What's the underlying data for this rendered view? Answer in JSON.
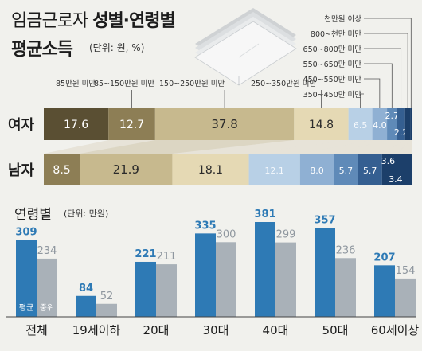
{
  "title": {
    "line1_light": "임금근로자",
    "line1_bold": "성별·연령별",
    "line2": "평균소득",
    "unit": "(단위: 원, %)"
  },
  "age_section": {
    "title": "연령별",
    "unit": "(단위: 만원)"
  },
  "colors": {
    "gender_segments": [
      "#5a4f33",
      "#8d7e55",
      "#c7b98e",
      "#e5d9b4",
      "#b8d0e6",
      "#8fb0d3",
      "#5f8ab8",
      "#355f91",
      "#1c3f6a"
    ],
    "avg_bar": "#2e7ab5",
    "median_bar": "#a9b1b8",
    "avg_label": "#2e7ab5",
    "median_label": "#8f979f",
    "connector": "#cbc0a0"
  },
  "chart_data": [
    {
      "type": "bar",
      "orientation": "horizontal",
      "stacked": true,
      "percent": true,
      "categories": [
        "여자",
        "남자"
      ],
      "top_brackets": [
        "85만원 미만",
        "85~150만원 미만",
        "150~250만원 미만",
        "250~350만원 미만"
      ],
      "side_brackets": [
        "천만원 이상",
        "800~천만 미만",
        "650~800만 미만",
        "550~650만 미만",
        "450~550만 미만",
        "350~450만 미만"
      ],
      "series": [
        {
          "values": [
            17.6,
            0
          ],
          "labels": [
            "17.6",
            ""
          ]
        },
        {
          "values": [
            12.7,
            8.5
          ],
          "labels": [
            "12.7",
            "8.5"
          ]
        },
        {
          "values": [
            37.8,
            21.9
          ],
          "labels": [
            "37.8",
            "21.9"
          ]
        },
        {
          "values": [
            14.8,
            18.1
          ],
          "labels": [
            "14.8",
            "18.1"
          ]
        },
        {
          "values": [
            6.5,
            12.1
          ],
          "labels": [
            "6.5",
            "12.1"
          ]
        },
        {
          "values": [
            4.0,
            8.0
          ],
          "labels": [
            "4.0",
            "8.0"
          ]
        },
        {
          "values": [
            2.7,
            5.7
          ],
          "labels": [
            "2.7",
            "5.7"
          ]
        },
        {
          "values": [
            2.2,
            5.7
          ],
          "labels": [
            "2.2",
            "5.7"
          ]
        },
        {
          "values": [
            1.5,
            3.6
          ],
          "labels": [
            "",
            "3.6"
          ]
        },
        {
          "values": [
            0.3,
            3.4
          ],
          "labels": [
            "",
            "3.4"
          ]
        }
      ]
    },
    {
      "type": "bar",
      "orientation": "vertical",
      "categories": [
        "전체",
        "19세이하",
        "20대",
        "30대",
        "40대",
        "50대",
        "60세이상"
      ],
      "series": [
        {
          "name": "평균",
          "values": [
            309,
            84,
            221,
            335,
            381,
            357,
            207
          ]
        },
        {
          "name": "중위",
          "values": [
            234,
            52,
            211,
            300,
            299,
            236,
            154
          ]
        }
      ],
      "ylim": [
        0,
        381
      ]
    }
  ]
}
